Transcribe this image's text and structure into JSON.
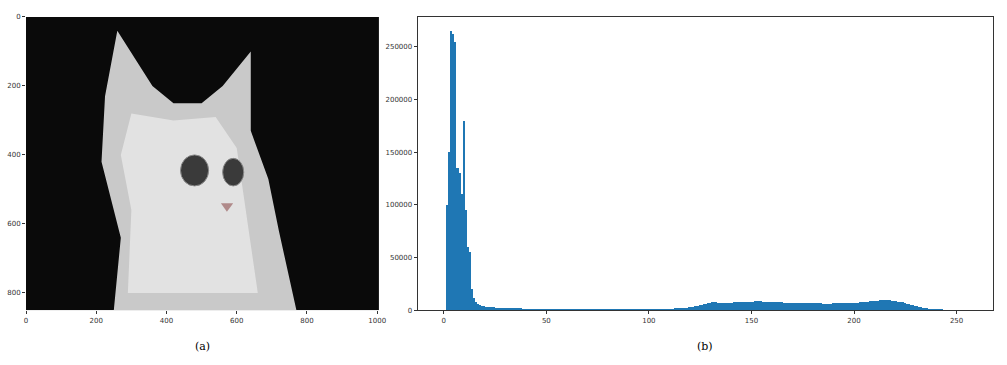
{
  "chart_data": [
    {
      "type": "image",
      "caption": "(a)",
      "xlim": [
        0,
        1005
      ],
      "xticks": [
        0,
        200,
        400,
        600,
        800,
        1000
      ],
      "ylim": [
        850,
        0
      ],
      "yticks": [
        0,
        200,
        400,
        600,
        800
      ]
    },
    {
      "type": "histogram",
      "caption": "(b)",
      "color": "#1f77b4",
      "xlim": [
        -12.75,
        267.75
      ],
      "xticks": [
        0,
        50,
        100,
        150,
        200,
        250
      ],
      "ylim": [
        0,
        278250
      ],
      "yticks": [
        0,
        50000,
        100000,
        150000,
        200000,
        250000
      ],
      "bins": [
        0,
        1,
        2,
        3,
        4,
        5,
        6,
        7,
        8,
        9,
        10,
        11,
        12,
        13,
        14,
        15,
        16,
        17,
        18,
        19,
        20,
        21,
        22,
        23,
        24,
        25,
        26,
        27,
        28,
        29,
        30,
        31,
        32,
        33,
        34,
        35,
        36,
        37,
        38,
        39,
        40,
        41,
        42,
        43,
        44,
        45,
        46,
        47,
        48,
        49,
        50,
        51,
        52,
        53,
        54,
        55,
        56,
        57,
        58,
        59,
        60,
        61,
        62,
        63,
        64,
        65,
        66,
        67,
        68,
        69,
        70,
        71,
        72,
        73,
        74,
        75,
        76,
        77,
        78,
        79,
        80,
        81,
        82,
        83,
        84,
        85,
        86,
        87,
        88,
        89,
        90,
        91,
        92,
        93,
        94,
        95,
        96,
        97,
        98,
        99,
        100,
        101,
        102,
        103,
        104,
        105,
        106,
        107,
        108,
        109,
        110,
        111,
        112,
        113,
        114,
        115,
        116,
        117,
        118,
        119,
        120,
        121,
        122,
        123,
        124,
        125,
        126,
        127,
        128,
        129,
        130,
        131,
        132,
        133,
        134,
        135,
        136,
        137,
        138,
        139,
        140,
        141,
        142,
        143,
        144,
        145,
        146,
        147,
        148,
        149,
        150,
        151,
        152,
        153,
        154,
        155,
        156,
        157,
        158,
        159,
        160,
        161,
        162,
        163,
        164,
        165,
        166,
        167,
        168,
        169,
        170,
        171,
        172,
        173,
        174,
        175,
        176,
        177,
        178,
        179,
        180,
        181,
        182,
        183,
        184,
        185,
        186,
        187,
        188,
        189,
        190,
        191,
        192,
        193,
        194,
        195,
        196,
        197,
        198,
        199,
        200,
        201,
        202,
        203,
        204,
        205,
        206,
        207,
        208,
        209,
        210,
        211,
        212,
        213,
        214,
        215,
        216,
        217,
        218,
        219,
        220,
        221,
        222,
        223,
        224,
        225,
        226,
        227,
        228,
        229,
        230,
        231,
        232,
        233,
        234,
        235,
        236,
        237,
        238,
        239,
        240,
        241,
        242,
        243,
        244,
        245,
        246,
        247,
        248,
        249,
        250,
        251,
        252,
        253,
        254,
        255,
        256
      ],
      "values": [
        0,
        100000,
        150000,
        265000,
        262000,
        255000,
        135000,
        130000,
        110000,
        180000,
        95000,
        60000,
        55000,
        20000,
        12000,
        8000,
        6000,
        5000,
        4200,
        3600,
        3200,
        3000,
        2900,
        2800,
        2700,
        2600,
        2500,
        2400,
        2300,
        2200,
        2100,
        2000,
        1950,
        1900,
        1850,
        1800,
        1750,
        1700,
        1650,
        1600,
        1550,
        1500,
        1450,
        1400,
        1400,
        1350,
        1300,
        1300,
        1250,
        1200,
        1200,
        1150,
        1100,
        1100,
        1050,
        1000,
        1000,
        1000,
        950,
        950,
        900,
        900,
        900,
        900,
        850,
        850,
        850,
        850,
        800,
        800,
        800,
        800,
        800,
        800,
        800,
        800,
        800,
        800,
        800,
        800,
        800,
        800,
        800,
        800,
        800,
        850,
        850,
        850,
        850,
        900,
        900,
        900,
        900,
        950,
        950,
        950,
        1000,
        1000,
        1000,
        1050,
        1050,
        1100,
        1100,
        1150,
        1200,
        1200,
        1250,
        1300,
        1350,
        1400,
        1500,
        1600,
        1700,
        1800,
        1900,
        2000,
        2200,
        2400,
        2600,
        2900,
        3200,
        3500,
        3900,
        4300,
        4800,
        5300,
        5800,
        6300,
        6800,
        7200,
        7500,
        7600,
        7500,
        7300,
        7100,
        7000,
        6900,
        7000,
        7100,
        7200,
        7300,
        7400,
        7500,
        7600,
        7700,
        7800,
        7900,
        8000,
        8100,
        8200,
        8300,
        8400,
        8500,
        8500,
        8400,
        8300,
        8200,
        8100,
        8000,
        7900,
        7800,
        7700,
        7600,
        7500,
        7400,
        7300,
        7200,
        7100,
        7000,
        6900,
        6800,
        6700,
        6600,
        6500,
        6500,
        6500,
        6600,
        6600,
        6700,
        6700,
        6800,
        6700,
        6600,
        6500,
        6400,
        6300,
        6300,
        6300,
        6400,
        6500,
        6600,
        6700,
        6800,
        6900,
        6900,
        6800,
        6800,
        6900,
        6900,
        7000,
        7000,
        7200,
        7400,
        7600,
        7800,
        8000,
        8200,
        8400,
        8600,
        8800,
        9000,
        9200,
        9300,
        9400,
        9500,
        9500,
        9400,
        9300,
        9200,
        9000,
        8700,
        8300,
        7900,
        7400,
        6900,
        6400,
        5900,
        5400,
        4900,
        4400,
        3900,
        3400,
        2900,
        2500,
        2100,
        1700,
        1400,
        1100,
        900,
        700,
        550,
        400,
        300,
        200,
        150,
        100,
        70,
        50,
        30,
        20,
        10,
        5,
        3,
        2,
        1,
        0
      ]
    }
  ]
}
